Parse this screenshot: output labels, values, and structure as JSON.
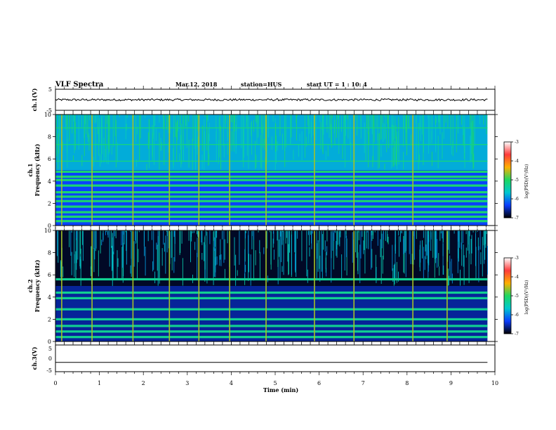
{
  "header": {
    "title": "VLF Spectra",
    "date": "Mar.12, 2018",
    "station": "station=HUS",
    "start": "start  UT  =   1 : 10: 4"
  },
  "colorbar": {
    "label": "log(PSD)(V²/Hz)",
    "ticks": [
      "-3",
      "-4",
      "-5",
      "-6",
      "-7"
    ],
    "colors": [
      "#ffffff",
      "#ff3b3b",
      "#ffb000",
      "#1ed760",
      "#00c8d0",
      "#0a3cff",
      "#000000"
    ]
  },
  "chart_data": [
    {
      "type": "line",
      "panel": "ch.1 waveform",
      "ylabel": "ch.1(V)",
      "ylim": [
        -5,
        5
      ],
      "y_ticks": [
        "5",
        "-5"
      ],
      "xlim": [
        0,
        10
      ],
      "series": [
        {
          "x_range": [
            0,
            9.83
          ],
          "mean_value": 0,
          "noise_amplitude": 0.5
        }
      ]
    },
    {
      "type": "heatmap",
      "panel": "ch.1 spectrogram",
      "ylabel_top": "ch.1",
      "ylabel": "Frequency (kHz)",
      "xlim": [
        0,
        10
      ],
      "ylim": [
        0,
        10
      ],
      "y_ticks": [
        "10",
        "8",
        "6",
        "4",
        "2",
        "0"
      ],
      "data_x_range": [
        0,
        9.83
      ],
      "color_scale": {
        "label": "log(PSD)(V²/Hz)",
        "range": [
          -7,
          -3
        ]
      },
      "background_level_above_5kHz": -5.8,
      "background_level_below_5kHz": -6.3,
      "narrowband_lines_kHz": [
        0.4,
        0.8,
        1.2,
        1.7,
        2.2,
        2.6,
        3.0,
        3.6,
        4.1,
        4.4,
        4.85
      ],
      "narrowband_level": -5.1,
      "upper_horizontal_lines_kHz": [
        5.8,
        7.3,
        8.8
      ],
      "impulsive_events_min": [
        0.13,
        0.82,
        1.75,
        2.58,
        3.25,
        3.95,
        4.78,
        5.88,
        6.78,
        8.12
      ]
    },
    {
      "type": "heatmap",
      "panel": "ch.2 spectrogram",
      "ylabel_top": "ch.2",
      "ylabel": "Frequency (kHz)",
      "xlim": [
        0,
        10
      ],
      "ylim": [
        0,
        10
      ],
      "y_ticks": [
        "10",
        "8",
        "6",
        "4",
        "2",
        "0"
      ],
      "data_x_range": [
        0,
        9.83
      ],
      "color_scale": {
        "label": "log(PSD)(V²/Hz)",
        "range": [
          -7,
          -3
        ]
      },
      "background_level_above_5kHz": -6.9,
      "background_level_below_5kHz": -6.6,
      "narrowband_lines_kHz": [
        0.4,
        0.9,
        1.4,
        2.0,
        2.9,
        3.9,
        4.4,
        5.6
      ],
      "narrowband_level": -5.3,
      "impulsive_events_min": [
        0.13,
        0.82,
        1.75,
        2.58,
        3.25,
        3.95,
        4.78,
        5.88,
        6.78,
        8.12,
        8.9
      ]
    },
    {
      "type": "line",
      "panel": "ch.3 waveform",
      "ylabel": "ch.3(V)",
      "ylim": [
        -5,
        5
      ],
      "y_ticks": [
        "5",
        "0",
        "-5"
      ],
      "xlim": [
        0,
        10
      ],
      "series": [
        {
          "x_range": [
            0,
            9.83
          ],
          "value": -1.5
        }
      ],
      "xlabel": "Time (min)",
      "x_ticks": [
        "0",
        "1",
        "2",
        "3",
        "4",
        "5",
        "6",
        "7",
        "8",
        "9",
        "10"
      ]
    }
  ]
}
